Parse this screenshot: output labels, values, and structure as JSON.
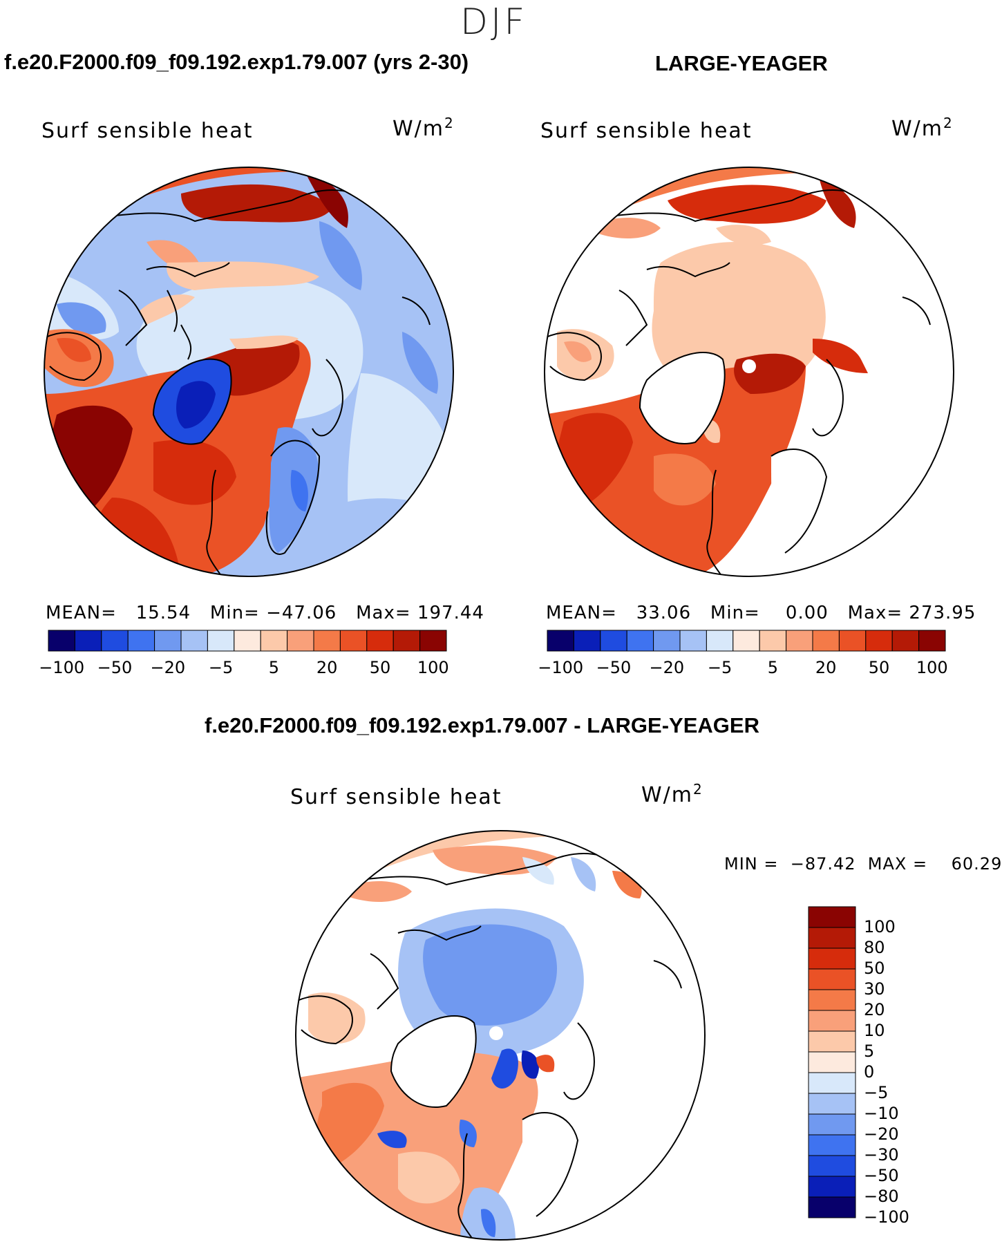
{
  "season": "DJF",
  "panel1": {
    "case_title": "f.e20.F2000.f09_f09.192.exp1.79.007 (yrs 2-30)",
    "plot_title": "Surf sensible heat",
    "units_base": "W/m",
    "units_exp": "2",
    "mean_label": "MEAN=",
    "mean_value": "15.54",
    "min_label": "Min=",
    "min_value": "−47.06",
    "max_label": "Max=",
    "max_value": "197.44"
  },
  "panel2": {
    "case_title": "LARGE-YEAGER",
    "plot_title": "Surf sensible heat",
    "units_base": "W/m",
    "units_exp": "2",
    "mean_label": "MEAN=",
    "mean_value": "33.06",
    "min_label": "Min=",
    "min_value": "0.00",
    "max_label": "Max=",
    "max_value": "273.95"
  },
  "panel3": {
    "case_title": "f.e20.F2000.f09_f09.192.exp1.79.007 - LARGE-YEAGER",
    "plot_title": "Surf sensible heat",
    "units_base": "W/m",
    "units_exp": "2",
    "minmax_text": "MIN =  −87.42  MAX =    60.29"
  },
  "top_colorbar": {
    "colors": [
      "#08006b",
      "#0a1fb8",
      "#1f4ce0",
      "#3f73f0",
      "#7099f0",
      "#a6c2f5",
      "#d8e8fa",
      "#fdeade",
      "#fcc9aa",
      "#f9a07a",
      "#f47a48",
      "#ea5226",
      "#d62c0c",
      "#b41a06",
      "#8a0402"
    ],
    "labels": [
      "−100",
      "−50",
      "−20",
      "−5",
      "5",
      "20",
      "50",
      "100"
    ]
  },
  "diff_colorbar": {
    "colors": [
      "#8a0402",
      "#b41a06",
      "#d62c0c",
      "#ea5226",
      "#f47a48",
      "#f9a07a",
      "#fcc9aa",
      "#fdeade",
      "#d8e8fa",
      "#a6c2f5",
      "#7099f0",
      "#3f73f0",
      "#1f4ce0",
      "#0a1fb8",
      "#08006b"
    ],
    "labels": [
      "100",
      "80",
      "50",
      "30",
      "20",
      "10",
      "5",
      "0",
      "−5",
      "−10",
      "−20",
      "−30",
      "−50",
      "−80",
      "−100"
    ]
  }
}
